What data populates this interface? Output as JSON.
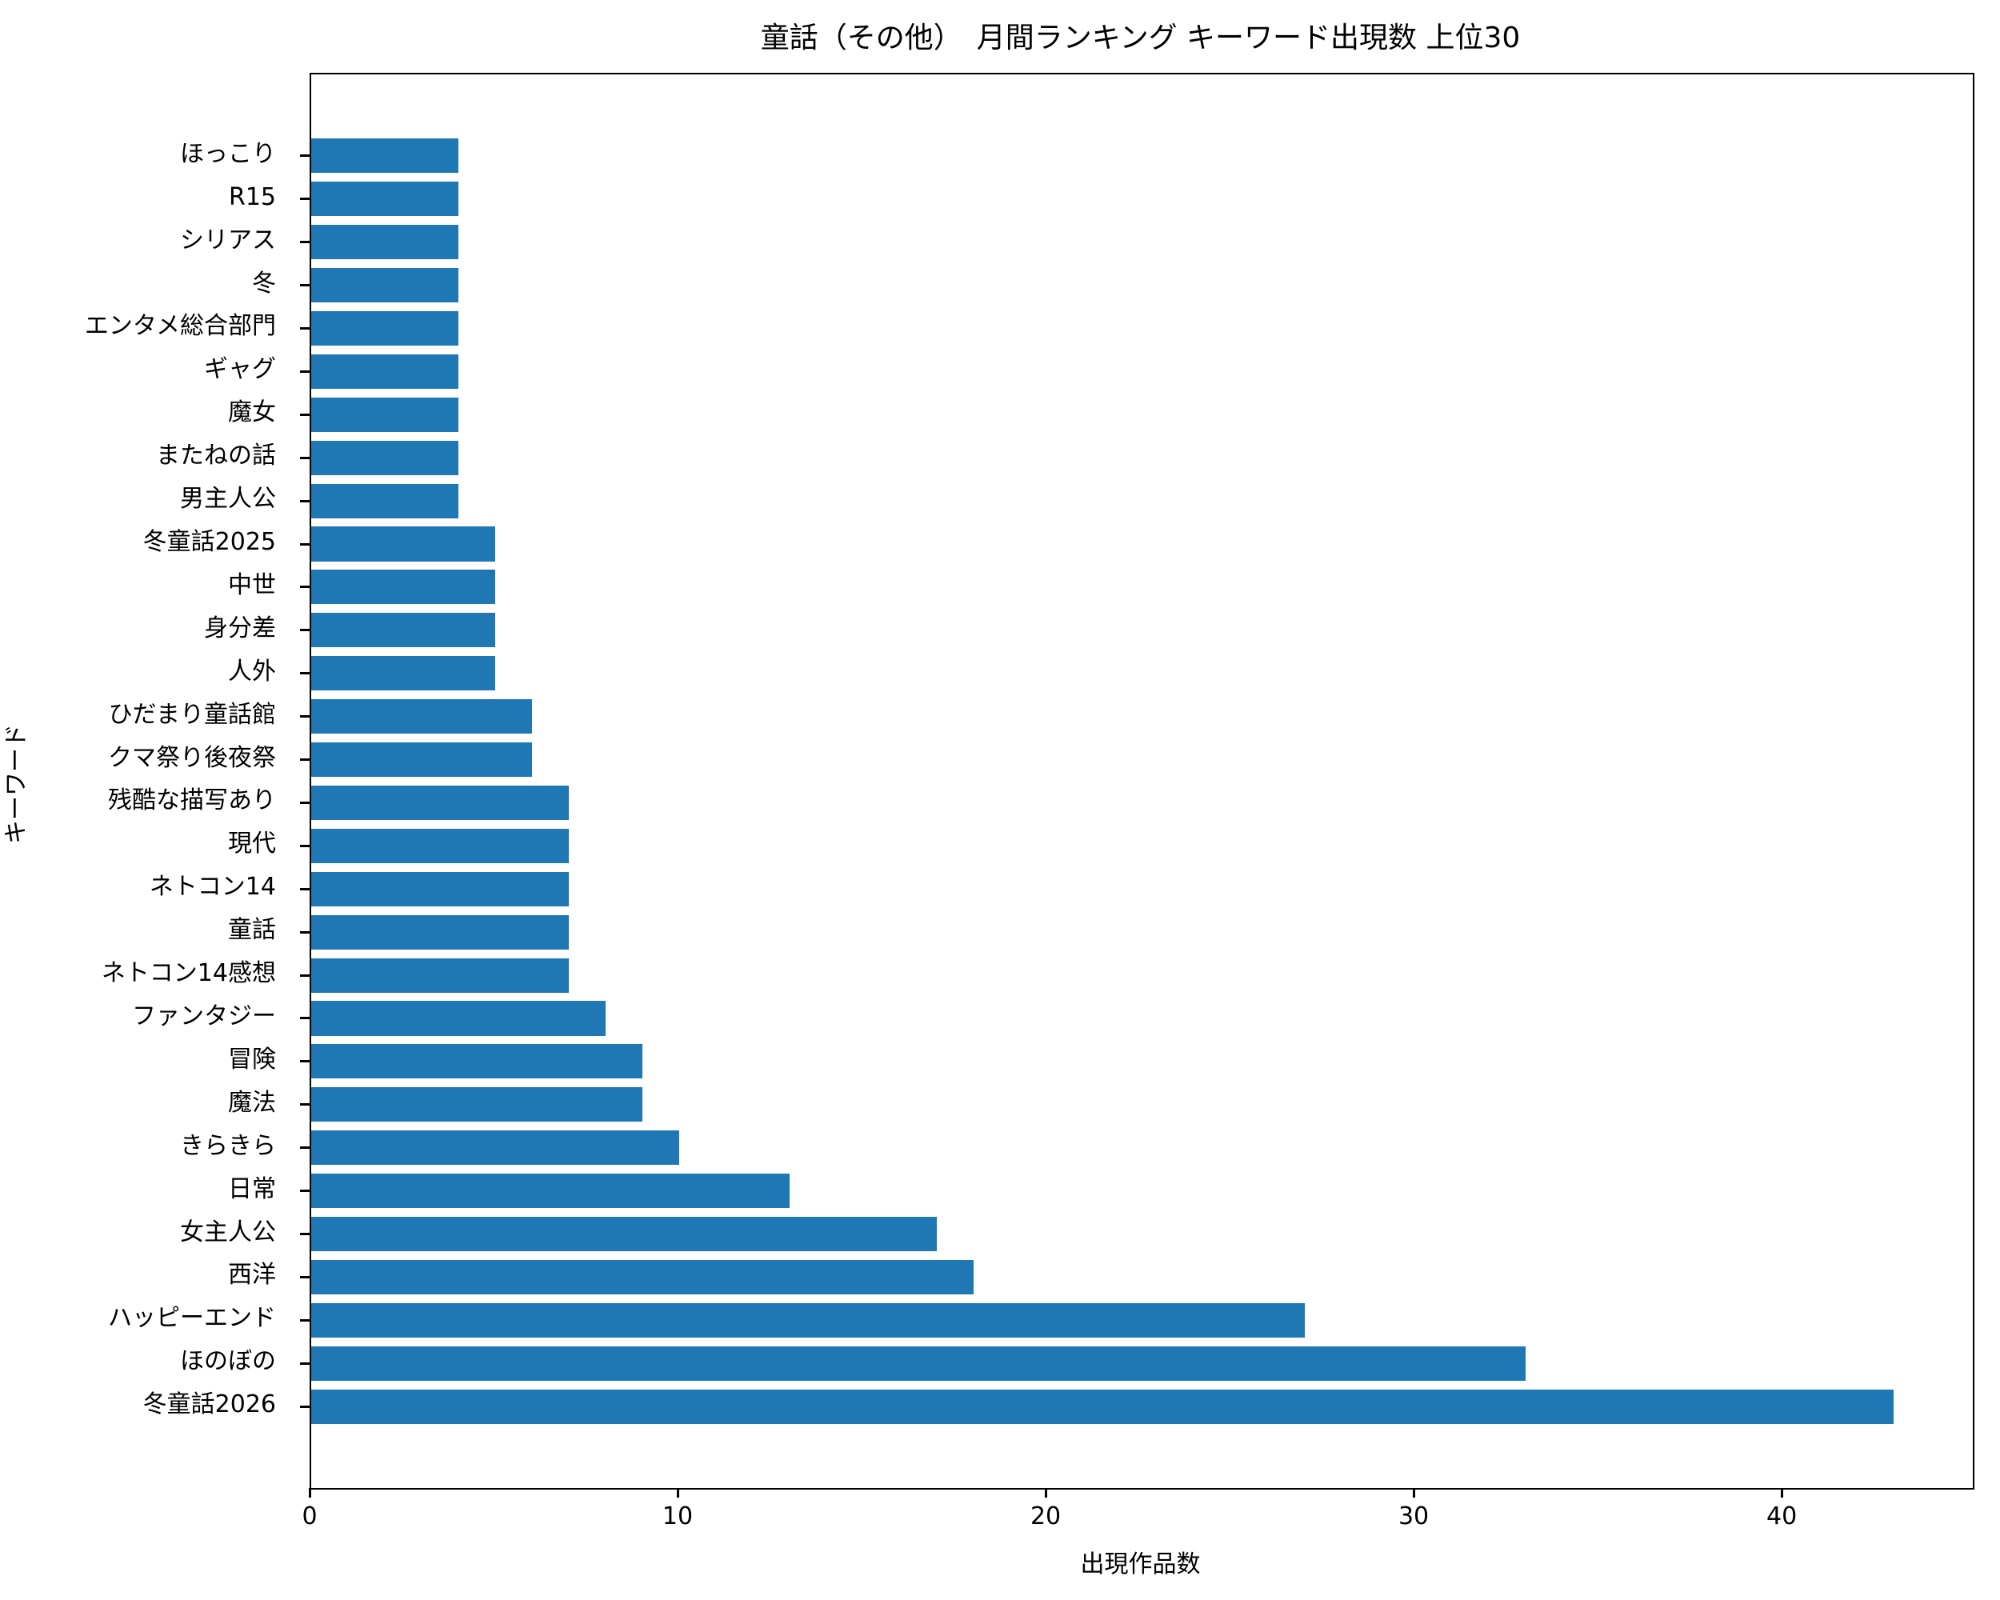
{
  "title": "童話（その他）　月間ランキング キーワード出現数 上位30",
  "chart_data": {
    "type": "bar",
    "orientation": "horizontal",
    "title": "童話（その他）　月間ランキング キーワード出現数 上位30",
    "xlabel": "出現作品数",
    "ylabel": "キーワード",
    "categories_top_to_bottom": [
      "ほっこり",
      "R15",
      "シリアス",
      "冬",
      "エンタメ総合部門",
      "ギャグ",
      "魔女",
      "またねの話",
      "男主人公",
      "冬童話2025",
      "中世",
      "身分差",
      "人外",
      "ひだまり童話館",
      "クマ祭り後夜祭",
      "残酷な描写あり",
      "現代",
      "ネトコン14",
      "童話",
      "ネトコン14感想",
      "ファンタジー",
      "冒険",
      "魔法",
      "きらきら",
      "日常",
      "女主人公",
      "西洋",
      "ハッピーエンド",
      "ほのぼの",
      "冬童話2026"
    ],
    "values_top_to_bottom": [
      4,
      4,
      4,
      4,
      4,
      4,
      4,
      4,
      4,
      5,
      5,
      5,
      5,
      6,
      6,
      7,
      7,
      7,
      7,
      7,
      8,
      9,
      9,
      10,
      13,
      17,
      18,
      27,
      33,
      43
    ],
    "x_ticks": [
      0,
      10,
      20,
      30,
      40
    ],
    "xlim": [
      0,
      45.15
    ],
    "bar_color": "#1f77b4",
    "grid": false,
    "legend": null
  }
}
